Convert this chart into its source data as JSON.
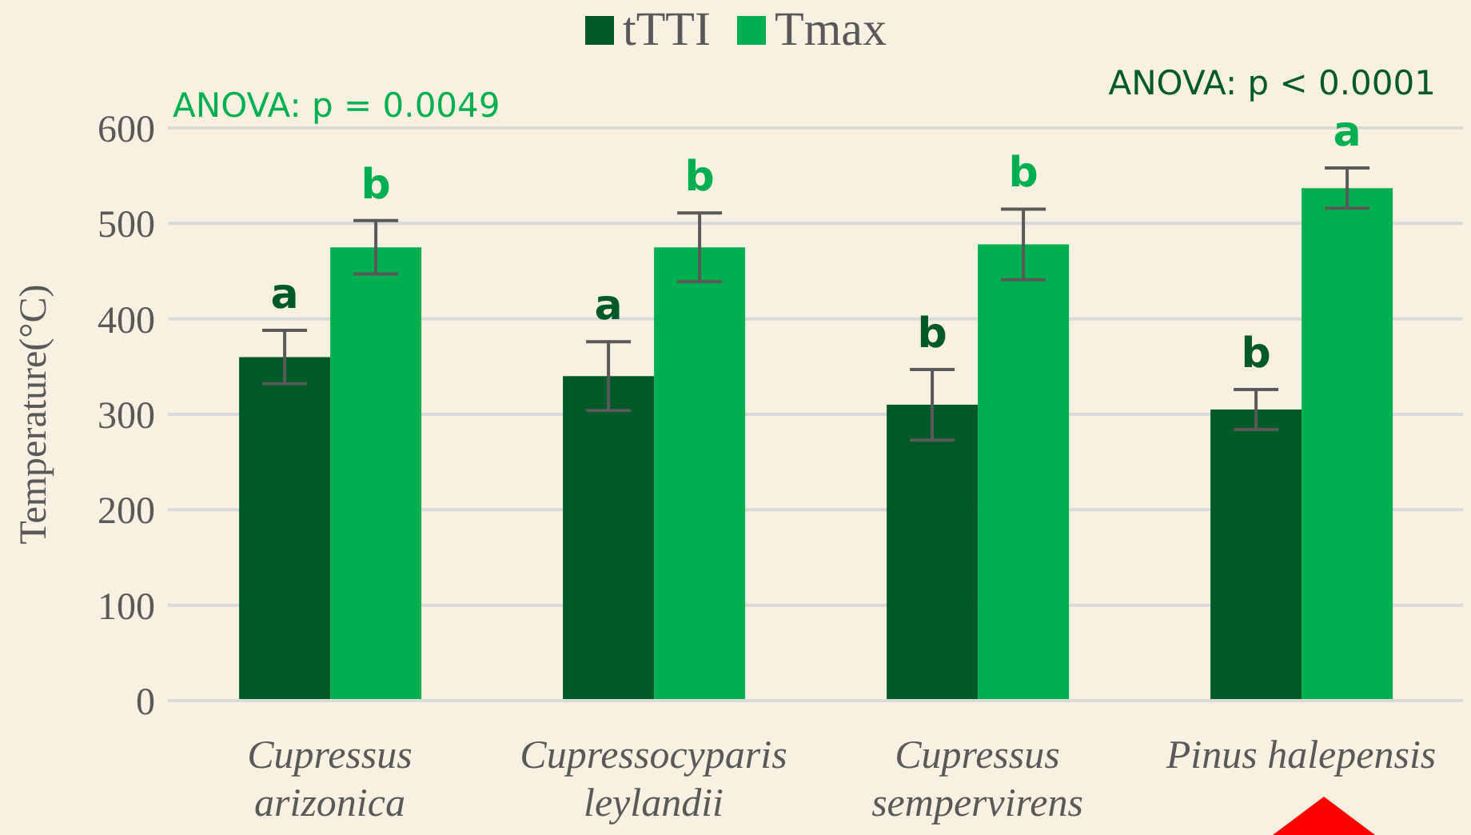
{
  "chart_data": {
    "type": "bar",
    "ylabel": "Temperature(°C)",
    "categories": [
      "Cupressus arizonica",
      "Cupressocyparis leylandii",
      "Cupressus sempervirens",
      "Pinus halepensis"
    ],
    "series": [
      {
        "name": "tTTI",
        "color": "#005a28",
        "values": [
          360,
          340,
          310,
          305
        ],
        "errors": [
          28,
          36,
          37,
          21
        ],
        "value_labels": [
          "a",
          "a",
          "b",
          "b"
        ]
      },
      {
        "name": "Tmax",
        "color": "#00b050",
        "values": [
          475,
          475,
          478,
          537
        ],
        "errors": [
          28,
          36,
          37,
          21
        ],
        "value_labels": [
          "b",
          "b",
          "b",
          "a"
        ]
      }
    ],
    "ylim": [
      0,
      600
    ],
    "yticks": [
      0,
      100,
      200,
      300,
      400,
      500,
      600
    ],
    "grid": "y",
    "legend": "top",
    "annotations": [
      "ANOVA: p = 0.0049",
      "ANOVA: p < 0.0001"
    ]
  }
}
